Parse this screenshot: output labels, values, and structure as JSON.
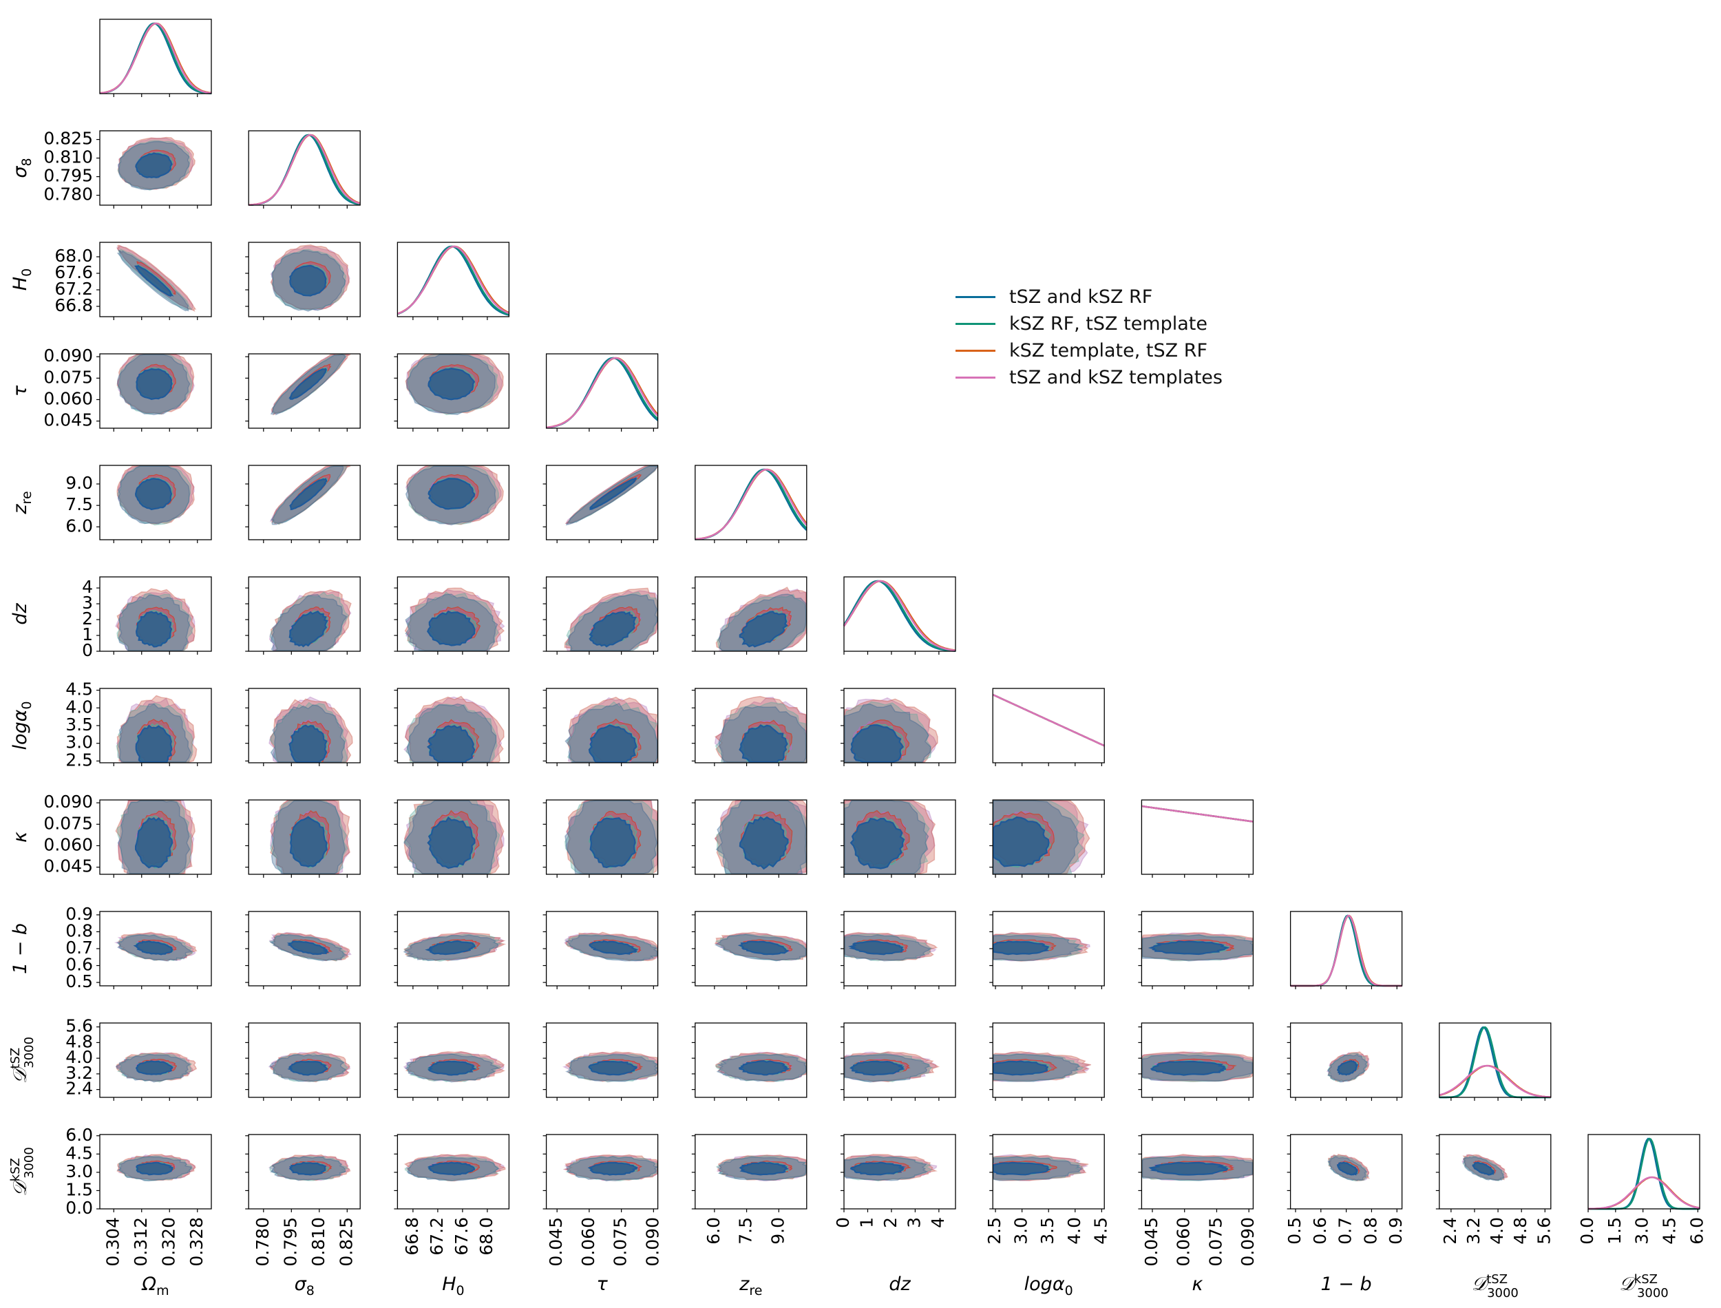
{
  "chart_data": {
    "type": "corner",
    "parameters": [
      {
        "key": "omega_m",
        "label": "Ωm",
        "math": "Ω_m",
        "ticks": [
          "0.304",
          "0.312",
          "0.320",
          "0.328"
        ],
        "tick_values": [
          0.304,
          0.312,
          0.32,
          0.328
        ],
        "range": [
          0.3,
          0.332
        ],
        "mean": 0.3155,
        "sigma": 0.0048
      },
      {
        "key": "sigma_8",
        "label": "σ8",
        "math": "σ_8",
        "ticks": [
          "0.780",
          "0.795",
          "0.810",
          "0.825"
        ],
        "tick_values": [
          0.78,
          0.795,
          0.81,
          0.825
        ],
        "range": [
          0.772,
          0.832
        ],
        "mean": 0.804,
        "sigma": 0.0092
      },
      {
        "key": "H_0",
        "label": "H0",
        "math": "H_0",
        "ticks": [
          "66.8",
          "67.2",
          "67.6",
          "68.0"
        ],
        "tick_values": [
          66.8,
          67.2,
          67.6,
          68.0
        ],
        "range": [
          66.55,
          68.35
        ],
        "mean": 67.42,
        "sigma": 0.34
      },
      {
        "key": "tau",
        "label": "τ",
        "math": "τ",
        "ticks": [
          "0.045",
          "0.060",
          "0.075",
          "0.090"
        ],
        "tick_values": [
          0.045,
          0.06,
          0.075,
          0.09
        ],
        "range": [
          0.04,
          0.092
        ],
        "mean": 0.071,
        "sigma": 0.01
      },
      {
        "key": "z_re",
        "label": "zre",
        "math": "z_re",
        "ticks": [
          "6.0",
          "7.5",
          "9.0"
        ],
        "tick_values": [
          6.0,
          7.5,
          9.0
        ],
        "range": [
          5.1,
          10.3
        ],
        "mean": 8.3,
        "sigma": 1.0
      },
      {
        "key": "dz",
        "label": "dz",
        "math": "dz",
        "ticks": [
          "0",
          "1",
          "2",
          "3",
          "4"
        ],
        "tick_values": [
          0,
          1,
          2,
          3,
          4
        ],
        "range": [
          0,
          4.7
        ],
        "mean": 1.4,
        "sigma": 1.0
      },
      {
        "key": "log_alpha0",
        "label": "logα0",
        "math": "logα_0",
        "ticks": [
          "2.5",
          "3.0",
          "3.5",
          "4.0",
          "4.5"
        ],
        "tick_values": [
          2.5,
          3.0,
          3.5,
          4.0,
          4.5
        ],
        "range": [
          2.45,
          4.55
        ],
        "mean": 2.9,
        "sigma": 0.55
      },
      {
        "key": "kappa",
        "label": "κ",
        "math": "κ",
        "ticks": [
          "0.045",
          "0.060",
          "0.075",
          "0.090"
        ],
        "tick_values": [
          0.045,
          0.06,
          0.075,
          0.09
        ],
        "range": [
          0.04,
          0.092
        ],
        "mean": 0.062,
        "sigma": 0.016
      },
      {
        "key": "one_minus_b",
        "label": "1 − b",
        "math": "1 − b",
        "ticks": [
          "0.5",
          "0.6",
          "0.7",
          "0.8",
          "0.9"
        ],
        "tick_values": [
          0.5,
          0.6,
          0.7,
          0.8,
          0.9
        ],
        "range": [
          0.48,
          0.92
        ],
        "mean": 0.705,
        "sigma": 0.035
      },
      {
        "key": "D_tSZ",
        "label": "D tSZ 3000",
        "math": "𝒟",
        "sup": "tSZ",
        "sub": "3000",
        "ticks": [
          "2.4",
          "3.2",
          "4.0",
          "4.8",
          "5.6"
        ],
        "tick_values": [
          2.4,
          3.2,
          4.0,
          4.8,
          5.6
        ],
        "range": [
          2.0,
          5.8
        ],
        "mean": 3.5,
        "sigma": 0.32
      },
      {
        "key": "D_kSZ",
        "label": "D kSZ 3000",
        "math": "𝒟",
        "sup": "kSZ",
        "sub": "3000",
        "ticks": [
          "0.0",
          "1.5",
          "3.0",
          "4.5",
          "6.0"
        ],
        "tick_values": [
          0.0,
          1.5,
          3.0,
          4.5,
          6.0
        ],
        "range": [
          0.0,
          6.1
        ],
        "mean": 3.3,
        "sigma": 0.45
      }
    ],
    "series": [
      {
        "name": "tSZ and kSZ RF",
        "color": "#0a6e9a",
        "fill": "#2b5d8c"
      },
      {
        "name": "kSZ RF,  tSZ template",
        "color": "#0f9477",
        "fill": "#55a89a"
      },
      {
        "name": "kSZ template,  tSZ RF",
        "color": "#d9621a",
        "fill": "#c64a3c"
      },
      {
        "name": "tSZ and kSZ templates",
        "color": "#d772b7",
        "fill": "#b070b8"
      }
    ],
    "correlations": {
      "1-0": 0.1,
      "2-0": -0.95,
      "2-1": 0.0,
      "3-1": 0.92,
      "4-1": 0.9,
      "4-3": 0.97,
      "5-1": 0.35,
      "5-3": 0.45,
      "5-4": 0.45,
      "8-0": -0.3,
      "8-1": -0.55,
      "8-2": 0.3,
      "8-3": -0.4,
      "8-4": -0.35,
      "8-5": -0.2,
      "9-8": 0.3,
      "10-8": -0.5,
      "10-9": -0.6
    },
    "legend_placement": "upper right, beside diagonal",
    "grid": false
  }
}
